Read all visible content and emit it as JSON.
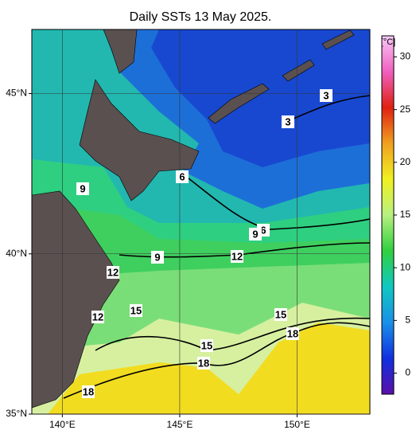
{
  "title": "Daily SSTs 13 May 2025.",
  "map": {
    "xlim": [
      138.7,
      153.1
    ],
    "ylim": [
      35,
      47
    ],
    "xticks": [
      {
        "value": 140,
        "label": "140°E"
      },
      {
        "value": 145,
        "label": "145°E"
      },
      {
        "value": 150,
        "label": "150°E"
      }
    ],
    "yticks": [
      {
        "value": 35,
        "label": "35°N"
      },
      {
        "value": 40,
        "label": "40°N"
      },
      {
        "value": 45,
        "label": "45°N"
      }
    ],
    "grid": true,
    "contour_labels": [
      3,
      3,
      6,
      6,
      9,
      9,
      9,
      12,
      12,
      12,
      15,
      15,
      15,
      18,
      18,
      18
    ]
  },
  "colorbar": {
    "label": "[°C]",
    "lim": [
      -2,
      32
    ],
    "ticks": [
      0,
      5,
      10,
      15,
      20,
      25,
      30
    ],
    "colors": [
      "#5a10a8",
      "#1030e0",
      "#1a90e8",
      "#10c8c0",
      "#30d040",
      "#b8f080",
      "#f0f020",
      "#f0a020",
      "#e02010",
      "#f060c0",
      "#f8c8f8"
    ]
  }
}
